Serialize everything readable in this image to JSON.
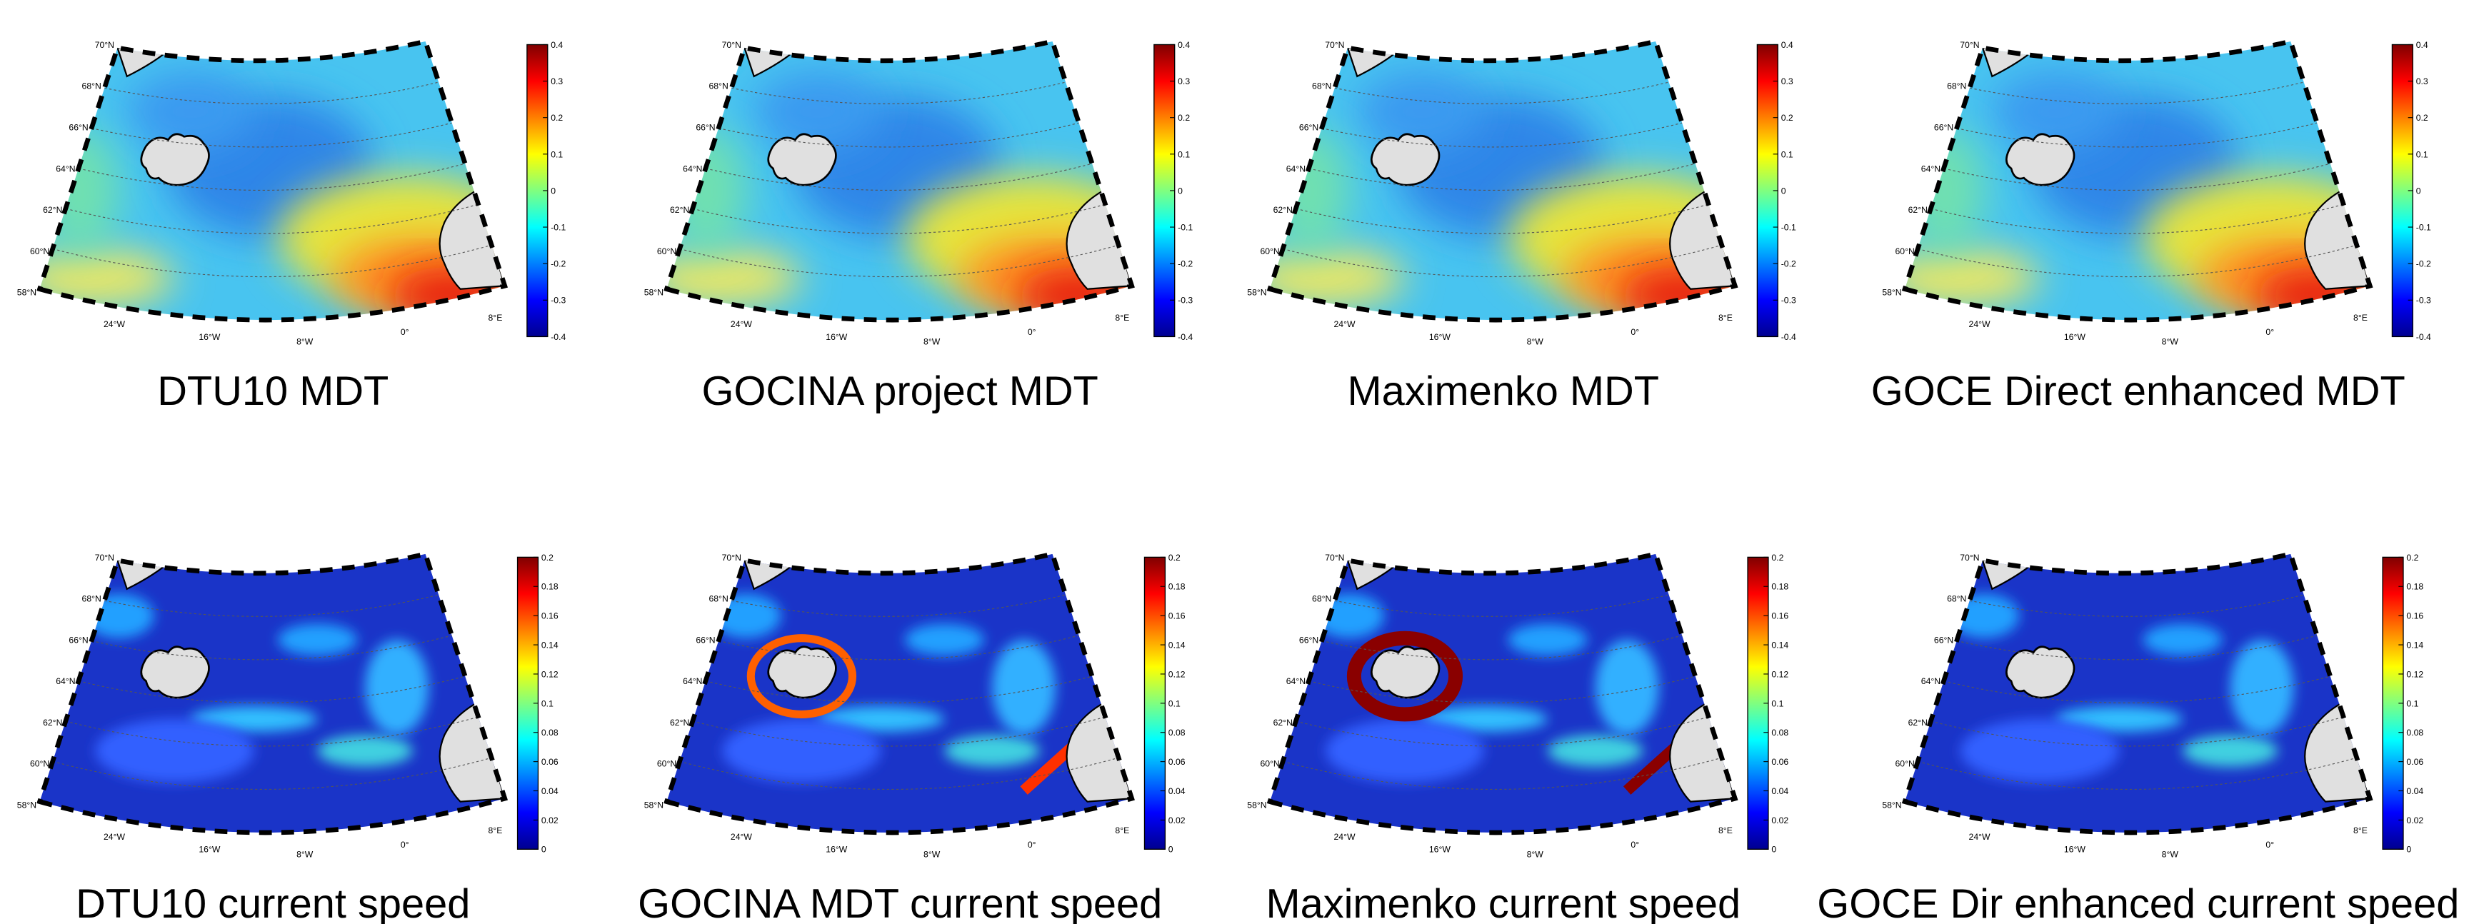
{
  "panels": [
    {
      "title": "DTU10 MDT",
      "colorbar": {
        "lim": [
          -0.4,
          0.4
        ],
        "ticks": [
          -0.4,
          -0.3,
          -0.2,
          -0.1,
          0,
          0.1,
          0.2,
          0.3,
          0.4
        ]
      },
      "lat_labels": [
        "58°N",
        "60°N",
        "62°N",
        "64°N",
        "66°N",
        "68°N",
        "70°N"
      ],
      "lon_labels": [
        "24°W",
        "16°W",
        "8°W",
        "0°",
        "8°E"
      ]
    },
    {
      "title": "GOCINA project MDT",
      "colorbar": {
        "lim": [
          -0.4,
          0.4
        ],
        "ticks": [
          -0.4,
          -0.3,
          -0.2,
          -0.1,
          0,
          0.1,
          0.2,
          0.3,
          0.4
        ]
      },
      "lat_labels": [
        "58°N",
        "60°N",
        "62°N",
        "64°N",
        "66°N",
        "68°N",
        "70°N"
      ],
      "lon_labels": [
        "24°W",
        "16°W",
        "8°W",
        "0°",
        "8°E"
      ]
    },
    {
      "title": "Maximenko MDT",
      "colorbar": {
        "lim": [
          -0.4,
          0.4
        ],
        "ticks": [
          -0.4,
          -0.3,
          -0.2,
          -0.1,
          0,
          0.1,
          0.2,
          0.3,
          0.4
        ]
      },
      "lat_labels": [
        "58°N",
        "60°N",
        "62°N",
        "64°N",
        "66°N",
        "68°N",
        "70°N"
      ],
      "lon_labels": [
        "24°W",
        "16°W",
        "8°W",
        "0°",
        "8°E"
      ]
    },
    {
      "title": "GOCE Direct enhanced MDT",
      "colorbar": {
        "lim": [
          -0.4,
          0.4
        ],
        "ticks": [
          -0.4,
          -0.3,
          -0.2,
          -0.1,
          0,
          0.1,
          0.2,
          0.3,
          0.4
        ]
      },
      "lat_labels": [
        "58°N",
        "60°N",
        "62°N",
        "64°N",
        "66°N",
        "68°N",
        "70°N"
      ],
      "lon_labels": [
        "24°W",
        "16°W",
        "8°W",
        "0°",
        "8°E"
      ]
    },
    {
      "title": "DTU10 current speed",
      "colorbar": {
        "lim": [
          0,
          0.2
        ],
        "ticks": [
          0,
          0.02,
          0.04,
          0.06,
          0.08,
          0.1,
          0.12,
          0.14,
          0.16,
          0.18,
          0.2
        ]
      },
      "lat_labels": [
        "58°N",
        "60°N",
        "62°N",
        "64°N",
        "66°N",
        "68°N",
        "70°N"
      ],
      "lon_labels": [
        "24°W",
        "16°W",
        "8°W",
        "0°",
        "8°E"
      ]
    },
    {
      "title": "GOCINA MDT current speed",
      "colorbar": {
        "lim": [
          0,
          0.2
        ],
        "ticks": [
          0,
          0.02,
          0.04,
          0.06,
          0.08,
          0.1,
          0.12,
          0.14,
          0.16,
          0.18,
          0.2
        ]
      },
      "lat_labels": [
        "58°N",
        "60°N",
        "62°N",
        "64°N",
        "66°N",
        "68°N",
        "70°N"
      ],
      "lon_labels": [
        "24°W",
        "16°W",
        "8°W",
        "0°",
        "8°E"
      ]
    },
    {
      "title": "Maximenko current speed",
      "colorbar": {
        "lim": [
          0,
          0.2
        ],
        "ticks": [
          0,
          0.02,
          0.04,
          0.06,
          0.08,
          0.1,
          0.12,
          0.14,
          0.16,
          0.18,
          0.2
        ]
      },
      "lat_labels": [
        "58°N",
        "60°N",
        "62°N",
        "64°N",
        "66°N",
        "68°N",
        "70°N"
      ],
      "lon_labels": [
        "24°W",
        "16°W",
        "8°W",
        "0°",
        "8°E"
      ]
    },
    {
      "title": "GOCE Dir enhanced current speed",
      "colorbar": {
        "lim": [
          0,
          0.2
        ],
        "ticks": [
          0,
          0.02,
          0.04,
          0.06,
          0.08,
          0.1,
          0.12,
          0.14,
          0.16,
          0.18,
          0.2
        ]
      },
      "lat_labels": [
        "58°N",
        "60°N",
        "62°N",
        "64°N",
        "66°N",
        "68°N",
        "70°N"
      ],
      "lon_labels": [
        "24°W",
        "16°W",
        "8°W",
        "0°",
        "8°E"
      ]
    }
  ]
}
